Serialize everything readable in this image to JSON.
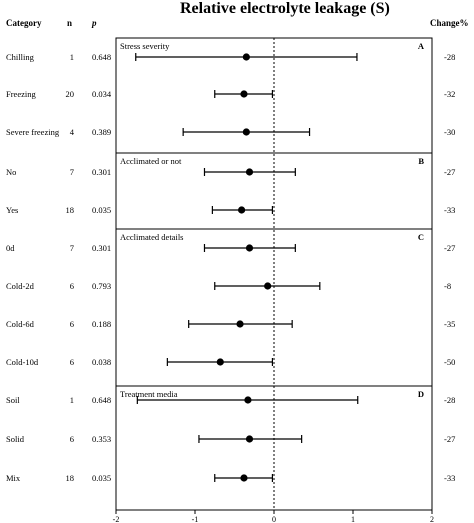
{
  "title": "Relative electrolyte leakage (S)",
  "headers": {
    "category": "Category",
    "n": "n",
    "p": "p",
    "change": "Change%"
  },
  "chart_data": {
    "type": "forest",
    "title": "Relative electrolyte leakage (S)",
    "xlim": [
      -2,
      2
    ],
    "xticks": [
      "-2",
      "-1",
      "0",
      "1",
      "2"
    ],
    "reference_line": 0,
    "panels": [
      {
        "label": "Stress severity",
        "letter": "A",
        "rows": [
          {
            "category": "Chilling",
            "n": "1",
            "p": "0.648",
            "change": "-28",
            "estimate": -0.35,
            "low": -1.75,
            "high": 1.05
          },
          {
            "category": "Freezing",
            "n": "20",
            "p": "0.034",
            "change": "-32",
            "estimate": -0.38,
            "low": -0.75,
            "high": -0.02
          },
          {
            "category": "Severe freezing",
            "n": "4",
            "p": "0.389",
            "change": "-30",
            "estimate": -0.35,
            "low": -1.15,
            "high": 0.45
          }
        ]
      },
      {
        "label": "Acclimated or not",
        "letter": "B",
        "rows": [
          {
            "category": "No",
            "n": "7",
            "p": "0.301",
            "change": "-27",
            "estimate": -0.31,
            "low": -0.88,
            "high": 0.27
          },
          {
            "category": "Yes",
            "n": "18",
            "p": "0.035",
            "change": "-33",
            "estimate": -0.41,
            "low": -0.78,
            "high": -0.02
          }
        ]
      },
      {
        "label": "Acclimated details",
        "letter": "C",
        "rows": [
          {
            "category": "0d",
            "n": "7",
            "p": "0.301",
            "change": "-27",
            "estimate": -0.31,
            "low": -0.88,
            "high": 0.27
          },
          {
            "category": "Cold-2d",
            "n": "6",
            "p": "0.793",
            "change": "-8",
            "estimate": -0.08,
            "low": -0.75,
            "high": 0.58
          },
          {
            "category": "Cold-6d",
            "n": "6",
            "p": "0.188",
            "change": "-35",
            "estimate": -0.43,
            "low": -1.08,
            "high": 0.23
          },
          {
            "category": "Cold-10d",
            "n": "6",
            "p": "0.038",
            "change": "-50",
            "estimate": -0.68,
            "low": -1.35,
            "high": -0.02
          }
        ]
      },
      {
        "label": "Treatment media",
        "letter": "D",
        "rows": [
          {
            "category": "Soil",
            "n": "1",
            "p": "0.648",
            "change": "-28",
            "estimate": -0.33,
            "low": -1.73,
            "high": 1.06
          },
          {
            "category": "Solid",
            "n": "6",
            "p": "0.353",
            "change": "-27",
            "estimate": -0.31,
            "low": -0.95,
            "high": 0.35
          },
          {
            "category": "Mix",
            "n": "18",
            "p": "0.035",
            "change": "-33",
            "estimate": -0.38,
            "low": -0.75,
            "high": -0.02
          }
        ]
      }
    ]
  }
}
